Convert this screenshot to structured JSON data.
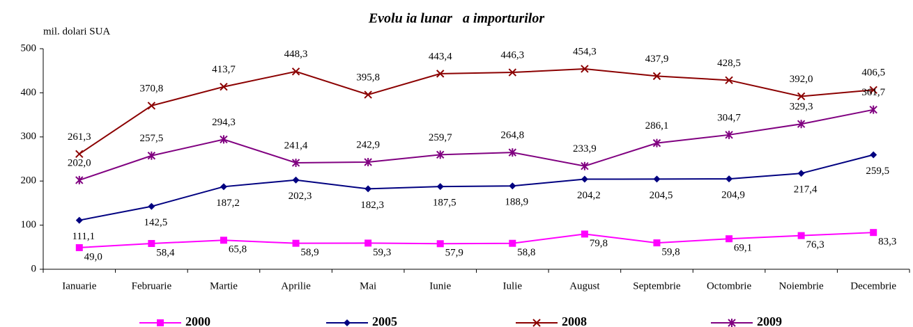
{
  "chart_data": {
    "type": "line",
    "title": "Evolu ia lunar   a importurilor",
    "y_label": "mil. dolari SUA",
    "categories": [
      "Ianuarie",
      "Februarie",
      "Martie",
      "Aprilie",
      "Mai",
      "Iunie",
      "Iulie",
      "August",
      "Septembrie",
      "Octombrie",
      "Noiembrie",
      "Decembrie"
    ],
    "ylim": [
      0,
      500
    ],
    "yticks": [
      0,
      100,
      200,
      300,
      400,
      500
    ],
    "series": [
      {
        "name": "2000",
        "color": "#ff00ff",
        "marker": "square",
        "values": [
          49.0,
          58.4,
          65.8,
          58.9,
          59.3,
          57.9,
          58.8,
          79.8,
          59.8,
          69.1,
          76.3,
          83.3
        ],
        "value_labels": [
          "49,0",
          "58,4",
          "65,8",
          "58,9",
          "59,3",
          "57,9",
          "58,8",
          "79,8",
          "59,8",
          "69,1",
          "76,3",
          "83,3"
        ]
      },
      {
        "name": "2005",
        "color": "#000080",
        "marker": "diamond",
        "values": [
          111.1,
          142.5,
          187.2,
          202.3,
          182.3,
          187.5,
          188.9,
          204.2,
          204.5,
          204.9,
          217.4,
          259.5
        ],
        "value_labels": [
          "111,1",
          "142,5",
          "187,2",
          "202,3",
          "182,3",
          "187,5",
          "188,9",
          "204,2",
          "204,5",
          "204,9",
          "217,4",
          "259,5"
        ]
      },
      {
        "name": "2008",
        "color": "#8b0000",
        "marker": "x",
        "values": [
          261.3,
          370.8,
          413.7,
          448.3,
          395.8,
          443.4,
          446.3,
          454.3,
          437.9,
          428.5,
          392.0,
          406.5
        ],
        "value_labels": [
          "261,3",
          "370,8",
          "413,7",
          "448,3",
          "395,8",
          "443,4",
          "446,3",
          "454,3",
          "437,9",
          "428,5",
          "392,0",
          "406,5"
        ]
      },
      {
        "name": "2009",
        "color": "#800080",
        "marker": "star",
        "values": [
          202.0,
          257.5,
          294.3,
          241.4,
          242.9,
          259.7,
          264.8,
          233.9,
          286.1,
          304.7,
          329.3,
          361.7
        ],
        "value_labels": [
          "202,0",
          "257,5",
          "294,3",
          "241,4",
          "242,9",
          "259,7",
          "264,8",
          "233,9",
          "286,1",
          "304,7",
          "329,3",
          "361,7"
        ]
      }
    ]
  }
}
